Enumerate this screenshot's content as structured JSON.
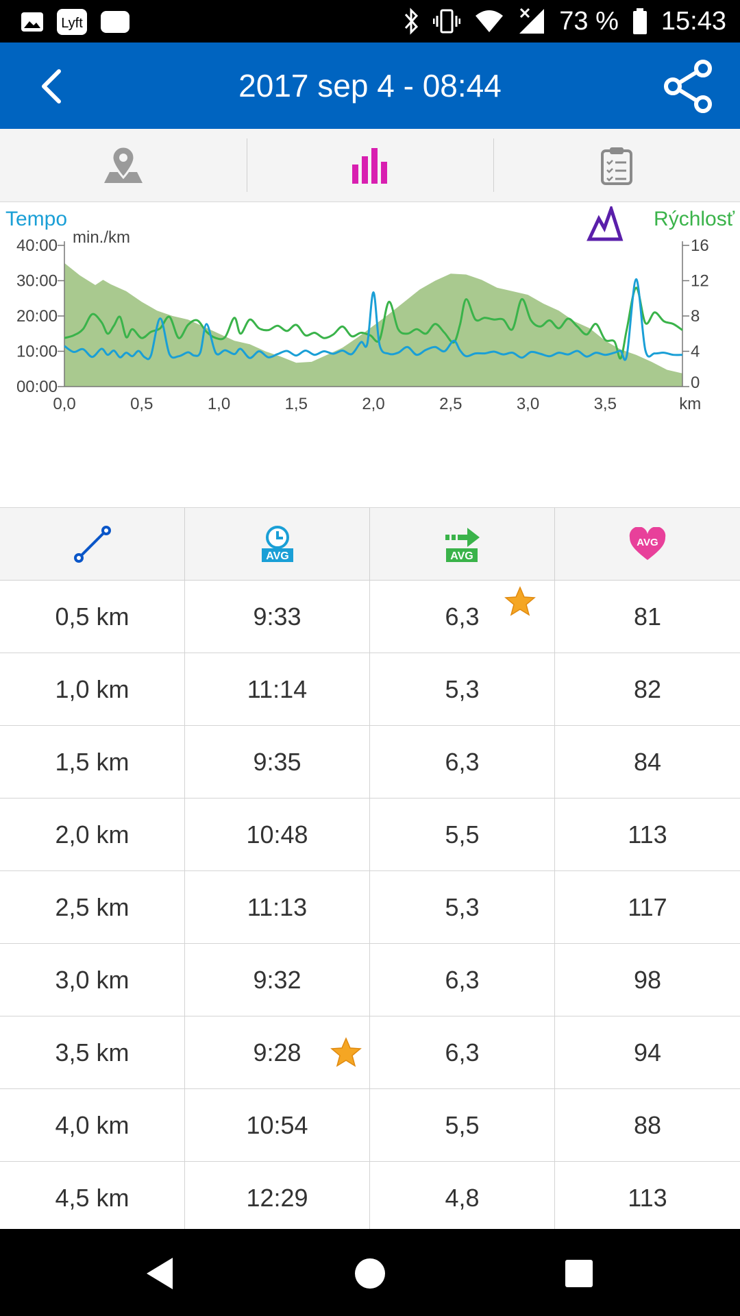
{
  "status_bar": {
    "battery_percent": "73 %",
    "time": "15:43",
    "icons": [
      "image-icon",
      "lyft-app-icon",
      "message-icon",
      "bluetooth-icon",
      "vibrate-icon",
      "wifi-icon",
      "signal-icon",
      "battery-icon"
    ]
  },
  "app_bar": {
    "title": "2017 sep 4 - 08:44",
    "back_icon": "back-arrow-icon",
    "share_icon": "share-icon",
    "color": "#0064c0"
  },
  "tabs": [
    {
      "name": "map",
      "icon": "map-pin-icon",
      "active": false
    },
    {
      "name": "charts",
      "icon": "bar-chart-icon",
      "active": true,
      "color": "#d81fb0"
    },
    {
      "name": "summary",
      "icon": "clipboard-icon",
      "active": false
    }
  ],
  "chart": {
    "legend_left": "Tempo",
    "legend_right": "Rýchlosť",
    "legend_icon": "mountain-icon"
  },
  "chart_data": {
    "type": "line",
    "x_unit": "km",
    "y_left_label": "min./km",
    "y_left_ticks": [
      "40:00",
      "30:00",
      "20:00",
      "10:00",
      "00:00"
    ],
    "y_right_ticks": [
      "16",
      "12",
      "8",
      "4",
      "0"
    ],
    "x_ticks": [
      "0,0",
      "0,5",
      "1,0",
      "1,5",
      "2,0",
      "2,5",
      "3,0",
      "3,5",
      "km"
    ],
    "xlim": [
      0,
      4.0
    ],
    "series": [
      {
        "kind": "elevation-area",
        "color": "#a9c98f",
        "x": [
          0,
          0.1,
          0.2,
          0.25,
          0.3,
          0.4,
          0.5,
          0.6,
          0.7,
          0.8,
          0.9,
          1.0,
          1.1,
          1.2,
          1.3,
          1.4,
          1.5,
          1.6,
          1.7,
          1.8,
          1.9,
          2.0,
          2.1,
          2.2,
          2.3,
          2.4,
          2.5,
          2.6,
          2.7,
          2.8,
          2.9,
          3.0,
          3.1,
          3.2,
          3.3,
          3.4,
          3.5,
          3.6,
          3.7,
          3.8,
          3.9,
          4.0
        ],
        "values_right_axis": [
          14.0,
          12.6,
          11.5,
          12.1,
          11.6,
          10.8,
          9.6,
          8.6,
          8.0,
          7.6,
          6.8,
          6.0,
          5.2,
          4.8,
          4.0,
          3.4,
          2.7,
          2.8,
          3.6,
          4.4,
          5.6,
          6.9,
          8.2,
          9.6,
          11.0,
          12.0,
          12.8,
          12.7,
          12.1,
          11.2,
          10.8,
          10.4,
          9.4,
          8.6,
          7.4,
          6.6,
          5.2,
          4.2,
          3.6,
          2.8,
          1.9,
          1.5
        ]
      },
      {
        "kind": "speed",
        "axis": "right",
        "color": "#3ab34a",
        "x": [
          0,
          0.06,
          0.12,
          0.18,
          0.24,
          0.28,
          0.32,
          0.36,
          0.4,
          0.44,
          0.5,
          0.56,
          0.62,
          0.68,
          0.74,
          0.8,
          0.86,
          0.92,
          0.98,
          1.04,
          1.1,
          1.14,
          1.2,
          1.26,
          1.32,
          1.38,
          1.44,
          1.5,
          1.56,
          1.62,
          1.68,
          1.74,
          1.8,
          1.86,
          1.92,
          1.98,
          2.04,
          2.1,
          2.16,
          2.22,
          2.28,
          2.34,
          2.4,
          2.46,
          2.52,
          2.56,
          2.6,
          2.66,
          2.72,
          2.78,
          2.84,
          2.9,
          2.96,
          3.02,
          3.08,
          3.14,
          3.2,
          3.26,
          3.32,
          3.38,
          3.44,
          3.5,
          3.56,
          3.6,
          3.64,
          3.7,
          3.76,
          3.82,
          3.88,
          3.94,
          4.0
        ],
        "values": [
          5.5,
          5.8,
          6.5,
          8.2,
          7.3,
          6.0,
          6.9,
          7.9,
          5.6,
          6.5,
          5.5,
          6.2,
          6.6,
          7.9,
          5.5,
          7.0,
          7.5,
          6.2,
          5.5,
          5.6,
          7.8,
          6.0,
          7.6,
          6.6,
          6.4,
          6.9,
          6.3,
          7.0,
          5.8,
          6.1,
          5.5,
          5.9,
          6.8,
          5.7,
          6.1,
          5.8,
          5.3,
          9.6,
          6.5,
          6.0,
          6.5,
          6.0,
          7.1,
          6.1,
          5.0,
          7.0,
          9.9,
          7.6,
          7.8,
          7.6,
          7.6,
          6.5,
          9.9,
          7.5,
          6.8,
          7.5,
          6.6,
          7.7,
          6.8,
          5.9,
          7.1,
          5.3,
          5.1,
          3.2,
          6.5,
          11.2,
          7.2,
          8.4,
          7.4,
          7.1,
          6.4
        ]
      },
      {
        "kind": "pace",
        "axis": "left",
        "color": "#1a9fd6",
        "x": [
          0,
          0.06,
          0.12,
          0.18,
          0.24,
          0.28,
          0.32,
          0.36,
          0.4,
          0.44,
          0.48,
          0.52,
          0.56,
          0.62,
          0.68,
          0.74,
          0.8,
          0.84,
          0.88,
          0.92,
          0.98,
          1.04,
          1.1,
          1.14,
          1.2,
          1.26,
          1.32,
          1.38,
          1.44,
          1.5,
          1.56,
          1.62,
          1.68,
          1.74,
          1.8,
          1.86,
          1.92,
          1.96,
          2.0,
          2.04,
          2.1,
          2.16,
          2.22,
          2.28,
          2.34,
          2.4,
          2.46,
          2.52,
          2.56,
          2.6,
          2.66,
          2.72,
          2.78,
          2.84,
          2.9,
          2.96,
          3.02,
          3.08,
          3.14,
          3.2,
          3.26,
          3.32,
          3.38,
          3.44,
          3.5,
          3.56,
          3.6,
          3.64,
          3.7,
          3.76,
          3.82,
          3.88,
          3.94,
          4.0
        ],
        "values_minutes": [
          11.5,
          9.8,
          10.6,
          8.4,
          10.7,
          9.0,
          10.2,
          8.3,
          9.6,
          8.6,
          10.1,
          8.3,
          8.8,
          19.3,
          9.2,
          8.6,
          9.7,
          8.8,
          9.7,
          17.7,
          9.5,
          10.3,
          9.2,
          10.7,
          8.1,
          10.0,
          8.3,
          9.2,
          10.1,
          8.8,
          10.2,
          9.0,
          10.0,
          9.3,
          10.2,
          9.2,
          12.6,
          12.1,
          26.7,
          11.8,
          9.3,
          9.6,
          11.2,
          9.0,
          10.4,
          11.2,
          10.0,
          13.0,
          10.3,
          8.6,
          9.4,
          9.4,
          9.9,
          9.1,
          9.6,
          8.2,
          9.8,
          9.3,
          8.6,
          9.6,
          9.1,
          10.1,
          8.5,
          9.6,
          9.0,
          9.6,
          10.1,
          8.8,
          30.4,
          10.3,
          9.4,
          9.6,
          9.0,
          9.0
        ]
      }
    ]
  },
  "table": {
    "headers": [
      {
        "icon": "distance-icon"
      },
      {
        "icon": "avg-pace-icon",
        "badge": "AVG"
      },
      {
        "icon": "avg-speed-icon",
        "badge": "AVG"
      },
      {
        "icon": "avg-heart-rate-icon",
        "badge": "AVG"
      }
    ],
    "rows": [
      {
        "distance": "0,5 km",
        "pace": "9:33",
        "speed": "6,3",
        "heart_rate": "81",
        "star_speed": true
      },
      {
        "distance": "1,0 km",
        "pace": "11:14",
        "speed": "5,3",
        "heart_rate": "82"
      },
      {
        "distance": "1,5 km",
        "pace": "9:35",
        "speed": "6,3",
        "heart_rate": "84"
      },
      {
        "distance": "2,0 km",
        "pace": "10:48",
        "speed": "5,5",
        "heart_rate": "113"
      },
      {
        "distance": "2,5 km",
        "pace": "11:13",
        "speed": "5,3",
        "heart_rate": "117"
      },
      {
        "distance": "3,0 km",
        "pace": "9:32",
        "speed": "6,3",
        "heart_rate": "98"
      },
      {
        "distance": "3,5 km",
        "pace": "9:28",
        "speed": "6,3",
        "heart_rate": "94",
        "star_pace": true
      },
      {
        "distance": "4,0 km",
        "pace": "10:54",
        "speed": "5,5",
        "heart_rate": "88"
      },
      {
        "distance": "4,5 km",
        "pace": "12:29",
        "speed": "4,8",
        "heart_rate": "113"
      }
    ]
  },
  "nav_bar": {
    "icons": [
      "nav-back-icon",
      "nav-home-icon",
      "nav-recents-icon"
    ]
  }
}
